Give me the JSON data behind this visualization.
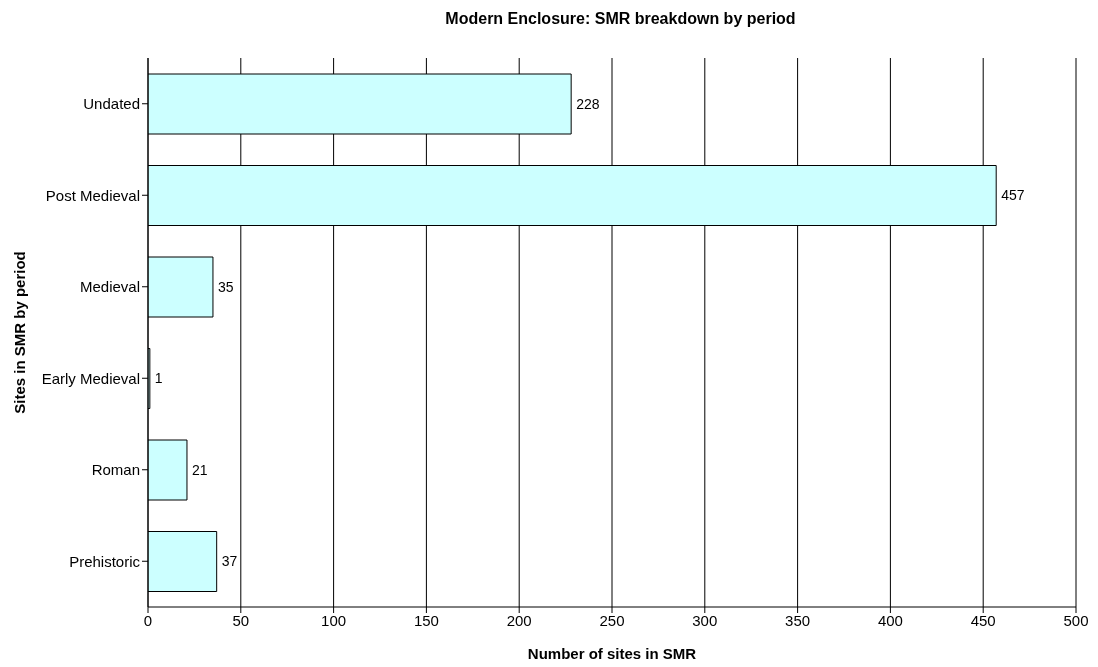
{
  "chart_data": {
    "type": "bar",
    "orientation": "horizontal",
    "title": "Modern Enclosure: SMR breakdown by period",
    "xlabel": "Number of sites in SMR",
    "ylabel": "Sites in SMR by period",
    "categories": [
      "Undated",
      "Post Medieval",
      "Medieval",
      "Early Medieval",
      "Roman",
      "Prehistoric"
    ],
    "values": [
      228,
      457,
      35,
      1,
      21,
      37
    ],
    "color": "#ccffff",
    "xlim": [
      0,
      500
    ],
    "xticks": [
      0,
      50,
      100,
      150,
      200,
      250,
      300,
      350,
      400,
      450,
      500
    ],
    "grid": "x",
    "data_labels": true,
    "legend": false
  }
}
